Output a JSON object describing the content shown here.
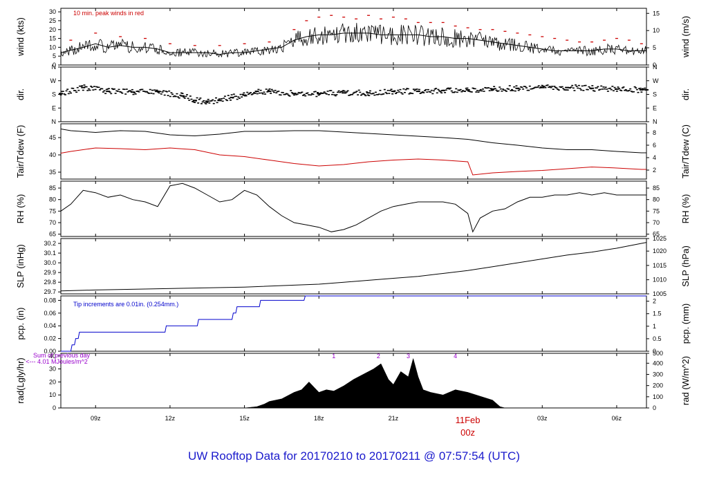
{
  "footer": {
    "title": "UW Rooftop Data for 20170210  to  20170211 @ 07:57:54  (UTC)"
  },
  "colors": {
    "primary": "#000000",
    "red": "#cc0000",
    "blue": "#0000cc",
    "purple": "#9900cc",
    "title_blue": "#1a1acc"
  },
  "x_axis": {
    "range_hours": [
      7.6,
      31.2
    ],
    "ticks": [
      {
        "hour": 9,
        "label": "09z"
      },
      {
        "hour": 12,
        "label": "12z"
      },
      {
        "hour": 15,
        "label": "15z"
      },
      {
        "hour": 18,
        "label": "18z"
      },
      {
        "hour": 21,
        "label": "21z"
      },
      {
        "hour": 24,
        "label": "",
        "date_label": "11Feb",
        "sub_label": "00z"
      },
      {
        "hour": 27,
        "label": "03z"
      },
      {
        "hour": 30,
        "label": "06z"
      }
    ]
  },
  "chart_data": [
    {
      "type": "line",
      "id": "wind",
      "ylabel_left": "wind (kts)",
      "ylabel_right": "wind (m/s)",
      "ylim": [
        0,
        32
      ],
      "ticks_left": [
        0,
        5,
        10,
        15,
        20,
        25,
        30
      ],
      "ticks_right": [
        0,
        5,
        10,
        15
      ],
      "annotation": "10 min. peak winds in red",
      "series": [
        {
          "name": "wind",
          "color": "#000000",
          "x": [
            7.6,
            8.5,
            9.0,
            9.5,
            10.0,
            10.5,
            11.0,
            11.5,
            12.0,
            12.5,
            13.0,
            13.5,
            14.0,
            14.5,
            15.0,
            15.5,
            16.0,
            16.5,
            17.0,
            17.5,
            18.0,
            18.5,
            19.0,
            19.5,
            20.0,
            20.5,
            21.0,
            21.5,
            22.0,
            22.5,
            23.0,
            23.5,
            24.0,
            24.5,
            25.0,
            25.5,
            26.0,
            26.5,
            27.0,
            27.5,
            28.0,
            28.5,
            29.0,
            29.5,
            30.0,
            30.5,
            31.0,
            31.2
          ],
          "y": [
            7,
            10,
            12,
            10,
            11,
            10,
            10,
            9,
            7,
            7,
            7,
            7,
            6,
            7,
            7,
            8,
            9,
            10,
            14,
            16,
            17,
            17,
            18,
            18,
            18,
            17,
            17,
            17,
            17,
            16,
            16,
            15,
            15,
            14,
            13,
            12,
            11,
            10,
            9,
            8,
            8,
            8,
            8,
            9,
            9,
            8,
            8,
            8
          ]
        },
        {
          "name": "10 min. peak winds",
          "color": "#cc0000",
          "x": [
            8.0,
            9.0,
            10.0,
            11.0,
            12.0,
            13.0,
            14.0,
            15.0,
            16.0,
            17.0,
            17.5,
            18.0,
            18.5,
            19.0,
            19.5,
            20.0,
            20.5,
            21.0,
            21.5,
            22.0,
            22.5,
            23.0,
            23.5,
            24.0,
            24.5,
            25.0,
            25.5,
            26.0,
            26.5,
            27.0,
            27.5,
            28.0,
            28.5,
            29.0,
            29.5,
            30.0,
            30.5,
            31.0
          ],
          "y": [
            14,
            18,
            16,
            15,
            12,
            11,
            11,
            12,
            13,
            20,
            25,
            27,
            28,
            27,
            26,
            28,
            26,
            27,
            26,
            24,
            24,
            24,
            22,
            21,
            20,
            20,
            19,
            18,
            17,
            16,
            15,
            14,
            13,
            13,
            14,
            15,
            14,
            12
          ]
        }
      ]
    },
    {
      "type": "scatter",
      "id": "dir",
      "ylabel_left": "dir.",
      "ylabel_right": "dir.",
      "ylim": [
        0,
        360
      ],
      "tick_labels": [
        {
          "value": 0,
          "label": "N"
        },
        {
          "value": 90,
          "label": "E"
        },
        {
          "value": 180,
          "label": "S"
        },
        {
          "value": 270,
          "label": "W"
        },
        {
          "value": 360,
          "label": "N"
        }
      ],
      "series": [
        {
          "name": "direction",
          "color": "#000000",
          "x": [
            7.6,
            8.5,
            9.5,
            10.5,
            11.5,
            12.5,
            13.0,
            13.5,
            14.0,
            14.5,
            15.0,
            15.5,
            16.0,
            17.0,
            18.0,
            19.0,
            20.0,
            21.0,
            22.0,
            23.0,
            24.0,
            25.0,
            26.0,
            27.0,
            28.0,
            29.0,
            30.0,
            31.0,
            31.2
          ],
          "y": [
            185,
            225,
            200,
            195,
            200,
            170,
            140,
            135,
            140,
            160,
            175,
            200,
            200,
            185,
            185,
            190,
            190,
            200,
            200,
            205,
            210,
            215,
            220,
            225,
            225,
            220,
            215,
            210,
            210
          ]
        }
      ]
    },
    {
      "type": "line",
      "id": "temp",
      "ylabel_left": "Tair/Tdew (F)",
      "ylabel_right": "Tair/Tdew (C)",
      "ylim": [
        33,
        49
      ],
      "ticks_left": [
        35,
        40,
        45
      ],
      "ticks_right": [
        2,
        4,
        6,
        8
      ],
      "series": [
        {
          "name": "Tair",
          "color": "#000000",
          "x": [
            7.6,
            8.0,
            9.0,
            10.0,
            11.0,
            12.0,
            13.0,
            14.0,
            15.0,
            16.0,
            17.0,
            18.0,
            19.0,
            20.0,
            21.0,
            22.0,
            23.0,
            24.0,
            25.0,
            26.0,
            27.0,
            28.0,
            29.0,
            30.0,
            31.0,
            31.2
          ],
          "y": [
            47.5,
            47,
            46.5,
            47,
            46.8,
            45.8,
            45.5,
            46,
            46.8,
            46.8,
            47,
            47,
            46.6,
            46.2,
            45.8,
            45.4,
            45,
            44.5,
            43.5,
            42.8,
            42,
            41.5,
            41.5,
            41,
            40.6,
            40.6
          ]
        },
        {
          "name": "Tdew",
          "color": "#cc0000",
          "x": [
            7.6,
            8.0,
            9.0,
            10.0,
            11.0,
            12.0,
            13.0,
            14.0,
            15.0,
            16.0,
            17.0,
            18.0,
            19.0,
            20.0,
            21.0,
            22.0,
            23.0,
            24.0,
            24.2,
            25.0,
            26.0,
            27.0,
            28.0,
            29.0,
            30.0,
            31.0,
            31.2
          ],
          "y": [
            40.5,
            41,
            42,
            41.8,
            41.5,
            42,
            41.5,
            40,
            39.5,
            38.5,
            37.5,
            36.8,
            37.2,
            38,
            38.5,
            38.8,
            38.5,
            38,
            34.2,
            34.8,
            35.2,
            35.5,
            36,
            36.5,
            36.2,
            35.8,
            35.8
          ]
        }
      ]
    },
    {
      "type": "line",
      "id": "rh",
      "ylabel_left": "RH (%)",
      "ylabel_right": "RH (%)",
      "ylim": [
        64,
        88
      ],
      "ticks_left": [
        65,
        70,
        75,
        80,
        85
      ],
      "ticks_right": [
        65,
        70,
        75,
        80,
        85
      ],
      "series": [
        {
          "name": "RH",
          "color": "#000000",
          "x": [
            7.6,
            8.0,
            8.5,
            9.0,
            9.5,
            10.0,
            10.5,
            11.0,
            11.5,
            12.0,
            12.5,
            13.0,
            13.5,
            14.0,
            14.5,
            15.0,
            15.5,
            16.0,
            16.5,
            17.0,
            17.5,
            18.0,
            18.5,
            19.0,
            19.5,
            20.0,
            20.5,
            21.0,
            21.5,
            22.0,
            22.5,
            23.0,
            23.5,
            24.0,
            24.2,
            24.5,
            25.0,
            25.5,
            26.0,
            26.5,
            27.0,
            27.5,
            28.0,
            28.5,
            29.0,
            29.5,
            30.0,
            30.5,
            31.0,
            31.2
          ],
          "y": [
            75,
            78,
            84,
            83,
            81,
            82,
            80,
            79,
            77,
            86,
            87,
            85,
            82,
            79,
            80,
            84,
            82,
            77,
            73,
            70,
            69,
            68,
            66,
            67,
            69,
            72,
            75,
            77,
            78,
            79,
            79,
            79,
            78,
            74,
            66,
            72,
            75,
            76,
            79,
            81,
            81,
            82,
            82,
            83,
            82,
            83,
            82,
            82,
            82,
            82
          ]
        }
      ]
    },
    {
      "type": "line",
      "id": "slp",
      "ylabel_left": "SLP (inHg)",
      "ylabel_right": "SLP (hPa)",
      "ylim": [
        29.68,
        30.25
      ],
      "ticks_left": [
        29.7,
        29.8,
        29.9,
        30.0,
        30.1,
        30.2
      ],
      "ticks_right": [
        1005,
        1010,
        1015,
        1020,
        1025
      ],
      "series": [
        {
          "name": "SLP",
          "color": "#000000",
          "x": [
            7.6,
            9.0,
            11.0,
            13.0,
            15.0,
            17.0,
            18.0,
            19.0,
            20.0,
            21.0,
            22.0,
            23.0,
            24.0,
            25.0,
            26.0,
            27.0,
            28.0,
            29.0,
            30.0,
            31.0,
            31.2
          ],
          "y": [
            29.71,
            29.72,
            29.73,
            29.74,
            29.75,
            29.77,
            29.78,
            29.8,
            29.82,
            29.84,
            29.86,
            29.89,
            29.92,
            29.96,
            30.0,
            30.04,
            30.08,
            30.11,
            30.15,
            30.2,
            30.21
          ]
        }
      ]
    },
    {
      "type": "line",
      "id": "pcp",
      "ylabel_left": "pcp. (in)",
      "ylabel_right": "pcp. (mm)",
      "ylim": [
        0,
        0.087
      ],
      "ticks_left": [
        0.0,
        0.02,
        0.04,
        0.06,
        0.08
      ],
      "ticks_right": [
        0,
        0.5,
        1,
        1.5,
        2
      ],
      "annotation": "Tip increments are 0.01in. (0.254mm.)",
      "series": [
        {
          "name": "precipitation",
          "color": "#0000cc",
          "x": [
            7.6,
            8.0,
            8.05,
            8.15,
            8.2,
            8.3,
            8.35,
            11.8,
            11.85,
            13.1,
            13.15,
            14.5,
            14.55,
            14.65,
            14.7,
            15.6,
            15.65,
            17.4,
            17.45,
            31.2
          ],
          "y": [
            0,
            0,
            0.01,
            0.01,
            0.02,
            0.02,
            0.03,
            0.03,
            0.04,
            0.04,
            0.05,
            0.05,
            0.06,
            0.06,
            0.07,
            0.07,
            0.08,
            0.08,
            0.09,
            0.09
          ]
        }
      ]
    },
    {
      "type": "area",
      "id": "rad",
      "ylabel_left": "rad(Lgly/hr)",
      "ylabel_right": "rad (W/m^2)",
      "ylim": [
        0,
        42
      ],
      "ticks_left": [
        0,
        10,
        20,
        30,
        40
      ],
      "ticks_right": [
        0,
        100,
        200,
        300,
        400,
        500
      ],
      "annotation_lines": [
        "Sum of previous day",
        "<--- 4.01 MJoules/m^2"
      ],
      "markers": [
        {
          "hour": 18.6,
          "label": "1"
        },
        {
          "hour": 20.4,
          "label": "2"
        },
        {
          "hour": 21.6,
          "label": "3"
        },
        {
          "hour": 23.5,
          "label": "4"
        }
      ],
      "series": [
        {
          "name": "radiation",
          "color": "#000000",
          "x": [
            15.0,
            15.5,
            15.8,
            16.0,
            16.5,
            17.0,
            17.3,
            17.6,
            18.0,
            18.3,
            18.6,
            19.0,
            19.4,
            19.8,
            20.2,
            20.5,
            20.8,
            21.0,
            21.3,
            21.6,
            21.8,
            22.0,
            22.2,
            22.5,
            23.0,
            23.5,
            24.0,
            24.5,
            25.0,
            25.3,
            25.5
          ],
          "y": [
            0,
            1,
            3,
            5,
            7,
            12,
            14,
            20,
            12,
            14,
            13,
            17,
            22,
            26,
            30,
            34,
            22,
            18,
            28,
            24,
            38,
            24,
            14,
            12,
            10,
            14,
            12,
            9,
            6,
            1,
            0
          ]
        }
      ]
    }
  ]
}
